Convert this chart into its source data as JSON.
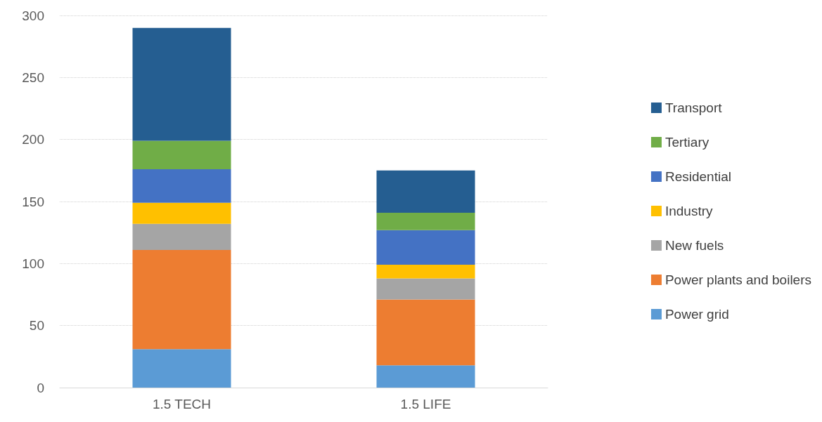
{
  "chart_data": {
    "type": "bar",
    "stacked": true,
    "categories": [
      "1.5 TECH",
      "1.5 LIFE"
    ],
    "series": [
      {
        "name": "Power grid",
        "color": "#5b9bd5",
        "values": [
          31,
          18
        ]
      },
      {
        "name": "Power plants and boilers",
        "color": "#ed7d31",
        "values": [
          80,
          53
        ]
      },
      {
        "name": "New fuels",
        "color": "#a5a5a5",
        "values": [
          21,
          17
        ]
      },
      {
        "name": "Industry",
        "color": "#ffc000",
        "values": [
          17,
          11
        ]
      },
      {
        "name": "Residential",
        "color": "#4472c4",
        "values": [
          27,
          28
        ]
      },
      {
        "name": "Tertiary",
        "color": "#70ad47",
        "values": [
          23,
          14
        ]
      },
      {
        "name": "Transport",
        "color": "#255e91",
        "values": [
          91,
          34
        ]
      }
    ],
    "ylim": [
      0,
      300
    ],
    "yticks": [
      0,
      50,
      100,
      150,
      200,
      250,
      300
    ],
    "grid": "y",
    "legend": "right"
  }
}
